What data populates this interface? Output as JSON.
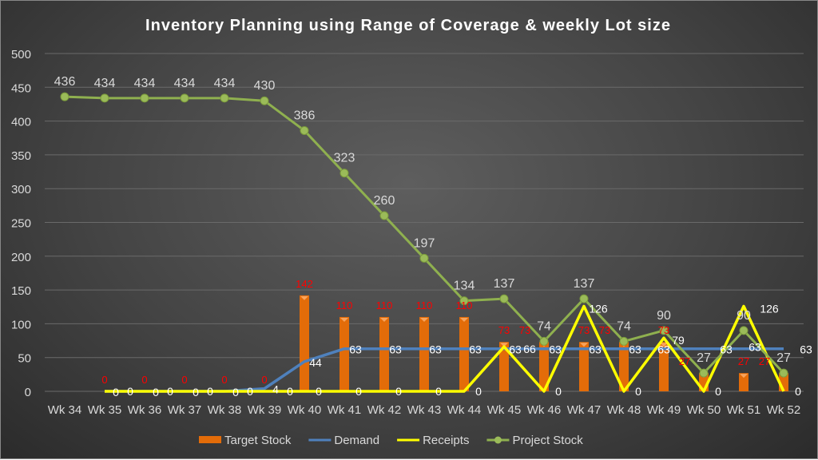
{
  "chart_data": {
    "type": "bar+line",
    "title": "Inventory Planning using Range of Coverage &  weekly Lot size",
    "xlabel": "",
    "ylabel": "",
    "ylim": [
      0,
      500
    ],
    "yticks": [
      0,
      50,
      100,
      150,
      200,
      250,
      300,
      350,
      400,
      450,
      500
    ],
    "grid": true,
    "legend": "bottom",
    "categories": [
      "Wk 34",
      "Wk 35",
      "Wk 36",
      "Wk 37",
      "Wk 38",
      "Wk 39",
      "Wk 40",
      "Wk 41",
      "Wk 42",
      "Wk 43",
      "Wk 44",
      "Wk 45",
      "Wk 46",
      "Wk 47",
      "Wk 48",
      "Wk 49",
      "Wk 50",
      "Wk 51",
      "Wk 52"
    ],
    "series": [
      {
        "name": "Target Stock",
        "kind": "bar",
        "color": "#e36c09",
        "label_color": "#ff0000",
        "values": [
          null,
          0,
          0,
          0,
          0,
          0,
          142,
          110,
          110,
          110,
          110,
          73,
          73,
          73,
          73,
          73,
          27,
          27,
          27
        ]
      },
      {
        "name": "Demand",
        "kind": "line",
        "color": "#4f81bd",
        "label_color": "#ffffff",
        "values": [
          null,
          0,
          0,
          0,
          0,
          4,
          44,
          63,
          63,
          63,
          63,
          63,
          63,
          63,
          63,
          63,
          63,
          63,
          63
        ]
      },
      {
        "name": "Receipts",
        "kind": "line",
        "color": "#ffff00",
        "label_color": "#ffffff",
        "values": [
          null,
          0,
          0,
          0,
          0,
          0,
          0,
          0,
          0,
          0,
          0,
          66,
          0,
          126,
          0,
          79,
          0,
          126,
          0
        ]
      },
      {
        "name": "Project Stock",
        "kind": "line-marker",
        "color": "#8fb04f",
        "label_color": "#d9d9d9",
        "values": [
          436,
          434,
          434,
          434,
          434,
          430,
          386,
          323,
          260,
          197,
          134,
          137,
          74,
          137,
          74,
          90,
          27,
          90,
          27
        ]
      }
    ]
  }
}
